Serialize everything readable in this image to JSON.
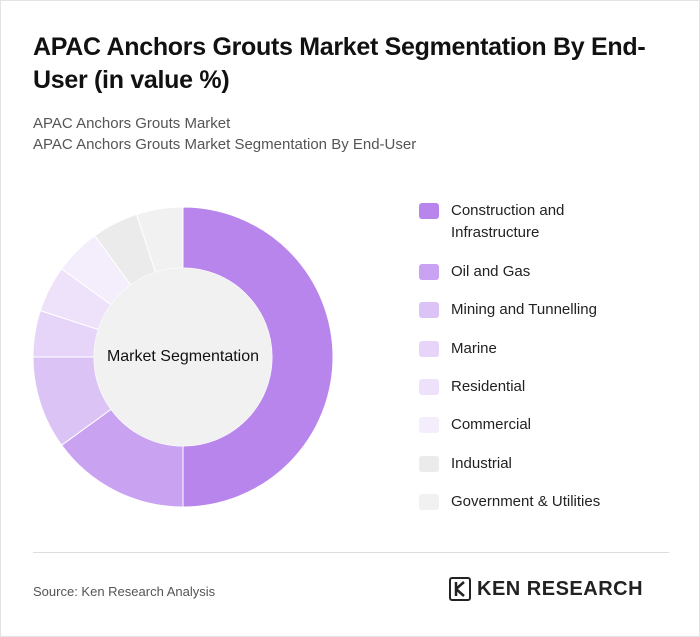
{
  "header": {
    "title": "APAC Anchors Grouts Market Segmentation By End-User (in value %)",
    "subtitle_1": "APAC Anchors Grouts Market",
    "subtitle_2": "APAC Anchors Grouts Market Segmentation By End-User"
  },
  "chart_data": {
    "type": "pie",
    "donut": true,
    "center_label": "Market Segmentation",
    "legend_position": "right",
    "categories": [
      "Construction and Infrastructure",
      "Oil and Gas",
      "Mining and Tunnelling",
      "Marine",
      "Residential",
      "Commercial",
      "Industrial",
      "Government & Utilities"
    ],
    "values": [
      50,
      15,
      10,
      5,
      5,
      5,
      5,
      5
    ],
    "unit": "%",
    "colors": [
      "#b785ec",
      "#c9a2f1",
      "#dcc3f5",
      "#e6d5f8",
      "#ede2fa",
      "#f3edfc",
      "#ebebeb",
      "#f1f1f1"
    ]
  },
  "footer": {
    "source": "Source: Ken Research Analysis",
    "logo_text": "KEN RESEARCH"
  }
}
